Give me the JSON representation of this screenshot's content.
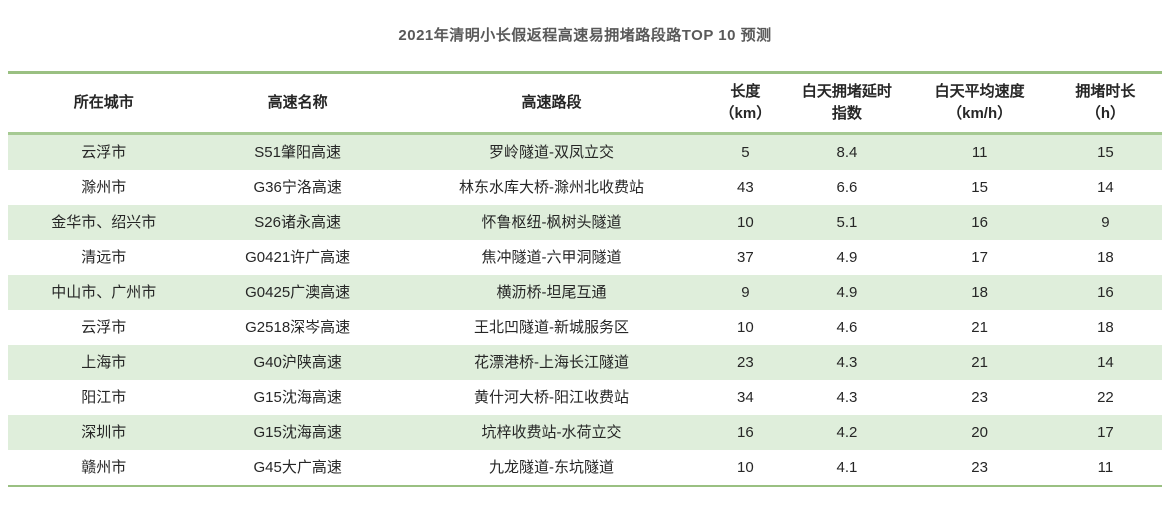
{
  "title": "2021年清明小长假返程高速易拥堵路段路TOP 10 预测",
  "colors": {
    "border_green": "#9ac082",
    "header_separator_green": "#a6ca93",
    "row_stripe_green": "#dfeedb",
    "title_text": "#595959",
    "body_text": "#262626",
    "background": "#ffffff"
  },
  "chart_data": {
    "type": "table",
    "title": "2021年清明小长假返程高速易拥堵路段路TOP 10 预测",
    "columns": [
      "所在城市",
      "高速名称",
      "高速路段",
      "长度\n（km）",
      "白天拥堵延时\n指数",
      "白天平均速度\n（km/h）",
      "拥堵时长\n（h）"
    ],
    "rows": [
      [
        "云浮市",
        "S51肇阳高速",
        "罗岭隧道-双凤立交",
        "5",
        "8.4",
        "11",
        "15"
      ],
      [
        "滁州市",
        "G36宁洛高速",
        "林东水库大桥-滁州北收费站",
        "43",
        "6.6",
        "15",
        "14"
      ],
      [
        "金华市、绍兴市",
        "S26诸永高速",
        "怀鲁枢纽-枫树头隧道",
        "10",
        "5.1",
        "16",
        "9"
      ],
      [
        "清远市",
        "G0421许广高速",
        "焦冲隧道-六甲洞隧道",
        "37",
        "4.9",
        "17",
        "18"
      ],
      [
        "中山市、广州市",
        "G0425广澳高速",
        "横沥桥-坦尾互通",
        "9",
        "4.9",
        "18",
        "16"
      ],
      [
        "云浮市",
        "G2518深岑高速",
        "王北凹隧道-新城服务区",
        "10",
        "4.6",
        "21",
        "18"
      ],
      [
        "上海市",
        "G40沪陕高速",
        "花漂港桥-上海长江隧道",
        "23",
        "4.3",
        "21",
        "14"
      ],
      [
        "阳江市",
        "G15沈海高速",
        "黄什河大桥-阳江收费站",
        "34",
        "4.3",
        "23",
        "22"
      ],
      [
        "深圳市",
        "G15沈海高速",
        "坑梓收费站-水荷立交",
        "16",
        "4.2",
        "20",
        "17"
      ],
      [
        "赣州市",
        "G45大广高速",
        "九龙隧道-东坑隧道",
        "10",
        "4.1",
        "23",
        "11"
      ]
    ]
  }
}
